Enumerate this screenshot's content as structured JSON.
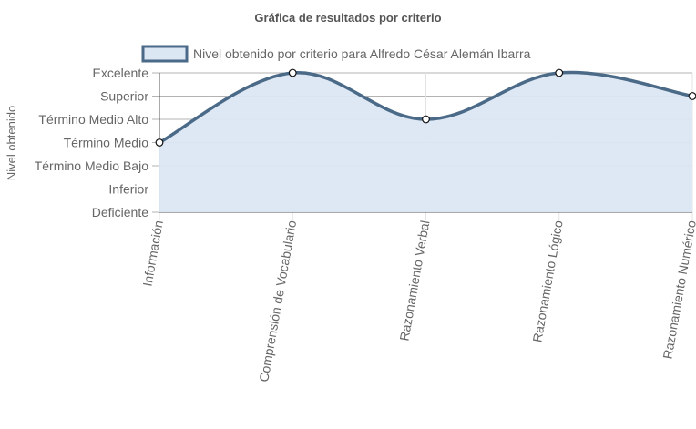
{
  "chart_data": {
    "type": "line",
    "title": "Gráfica de resultados por criterio",
    "xlabel": "",
    "ylabel": "Nivel obtenido",
    "categories": [
      "Información",
      "Comprensión de Vocabulario",
      "Razonamiento Verbal",
      "Razonamiento Lógico",
      "Razonamiento Numérico"
    ],
    "y_levels": [
      "Deficiente",
      "Inferior",
      "Término Medio Bajo",
      "Término Medio",
      "Término Medio Alto",
      "Superior",
      "Excelente"
    ],
    "ylim": [
      0,
      6
    ],
    "grid": true,
    "fill": true,
    "legend_position": "top",
    "series": [
      {
        "name": "Nivel obtenido por criterio para Alfredo César Alemán Ibarra",
        "values": [
          3,
          6,
          4,
          6,
          5
        ],
        "value_labels": [
          "Término Medio",
          "Excelente",
          "Término Medio Alto",
          "Excelente",
          "Superior"
        ]
      }
    ],
    "colors": {
      "line": "#4b6a88",
      "fill": "#dbe7f3",
      "grid": "#b3b3b3",
      "axis": "#555555",
      "point_fill": "#ffffff",
      "point_stroke": "#111111",
      "title": "#555555",
      "text": "#666666"
    }
  }
}
